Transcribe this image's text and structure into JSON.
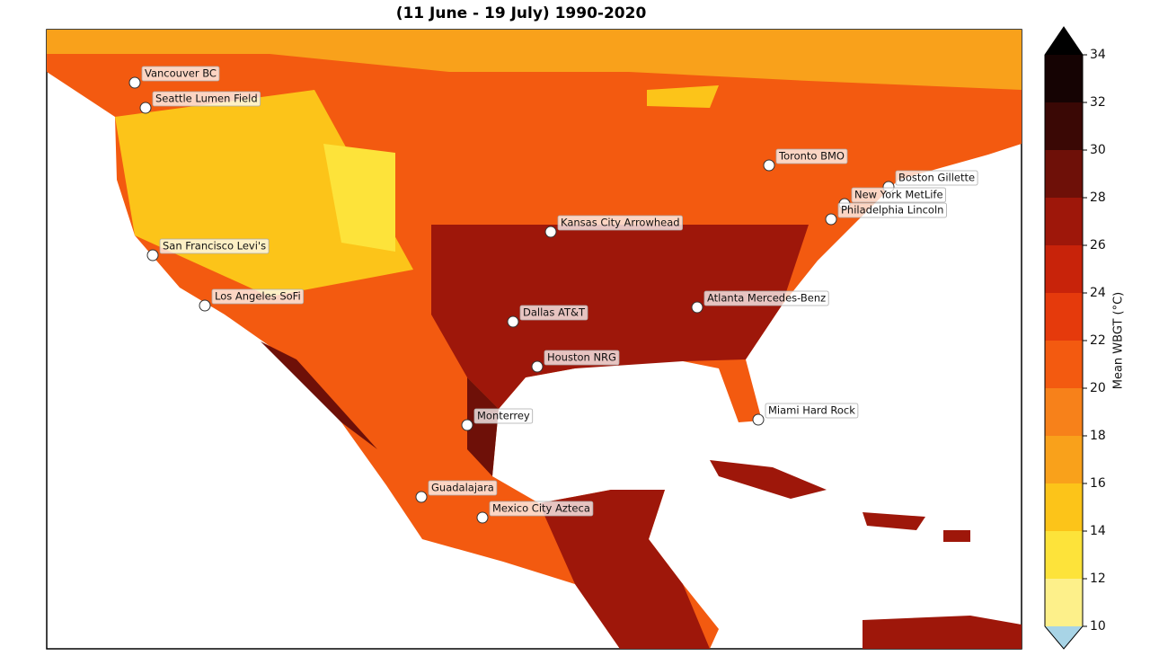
{
  "title": "(11 June - 19 July) 1990-2020",
  "cities": [
    "Vancouver BC",
    "Seattle Lumen Field",
    "San Francisco Levi's",
    "Los Angeles SoFi",
    "Kansas City Arrowhead",
    "Dallas AT&T",
    "Houston NRG",
    "Monterrey",
    "Guadalajara",
    "Mexico City Azteca",
    "Toronto BMO",
    "Boston Gillette",
    "New York MetLife",
    "Philadelphia Lincoln",
    "Atlanta Mercedes-Benz",
    "Miami Hard Rock"
  ],
  "colorbar": {
    "label": "Mean WBGT (°C)",
    "lim": [
      10,
      34
    ],
    "ticks": [
      10,
      12,
      14,
      16,
      18,
      20,
      22,
      24,
      26,
      28,
      30,
      32,
      34
    ],
    "colors": [
      "#fdf08a",
      "#fde33a",
      "#fcc419",
      "#f9a11b",
      "#f7811a",
      "#f35a10",
      "#e53a0c",
      "#c8230a",
      "#9e170a",
      "#6e1008",
      "#3a0805",
      "#150303"
    ],
    "under_color": "#a8d4e6",
    "over_color": "#000000"
  }
}
